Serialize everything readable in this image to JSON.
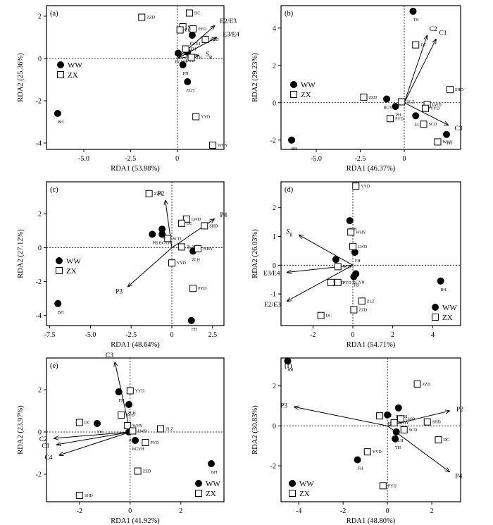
{
  "legend": {
    "ww": "WW",
    "zx": "ZX"
  },
  "chart_data": [
    {
      "type": "scatter",
      "panel": "(a)",
      "xlabel": "RDA1 (53.88%)",
      "ylabel": "RDA2 (25.36%)",
      "xlim": [
        -7,
        2.5
      ],
      "ylim": [
        -4.3,
        2.5
      ],
      "xticks": [
        "-5.0",
        "-2.5",
        "0"
      ],
      "xtickvals": [
        -5,
        -2.5,
        0
      ],
      "yticks": [
        "2",
        "0",
        "-2",
        "-4"
      ],
      "ytickvals": [
        2,
        0,
        -2,
        -4
      ],
      "legend_position": "top-left",
      "ww": [
        {
          "label": "BH",
          "x": -6.4,
          "y": -2.6
        },
        {
          "label": "BGYH",
          "x": 0.05,
          "y": 0.25
        },
        {
          "label": "PH",
          "x": 0.3,
          "y": -0.3
        },
        {
          "label": "LWD",
          "x": 0.55,
          "y": 0.3
        },
        {
          "label": "ZLH",
          "x": 0.55,
          "y": -1.1
        },
        {
          "label": "E3/E4",
          "x": 0.8,
          "y": 1.1
        }
      ],
      "zx": [
        {
          "label": "ZZD",
          "x": -1.9,
          "y": 1.95
        },
        {
          "label": "SCD",
          "x": 0.3,
          "y": 1.5
        },
        {
          "label": "DC",
          "x": 0.65,
          "y": 2.15
        },
        {
          "label": "ZLZ",
          "x": 0.15,
          "y": 1.35
        },
        {
          "label": "PYD",
          "x": 0.85,
          "y": 1.4
        },
        {
          "label": "TH",
          "x": 0.75,
          "y": 0.05
        },
        {
          "label": "SHD",
          "x": 1.5,
          "y": 0.9
        },
        {
          "label": "YYD",
          "x": 1.0,
          "y": -2.75
        },
        {
          "label": "WHY",
          "x": 1.9,
          "y": -4.1
        },
        {
          "label": "FH",
          "x": 0.45,
          "y": 0.45
        }
      ],
      "arrows": [
        {
          "label": "E2/E3",
          "x": 2.0,
          "y": 1.55
        },
        {
          "label": "E3/E4",
          "x": 2.1,
          "y": 1.0
        },
        {
          "label": "SR",
          "x": 1.15,
          "y": 0.15
        }
      ]
    },
    {
      "type": "scatter",
      "panel": "(b)",
      "xlabel": "RDA1 (46.37%)",
      "ylabel": "RDA2 (29.23%)",
      "xlim": [
        -7,
        3.2
      ],
      "ylim": [
        -2.5,
        5.2
      ],
      "xticks": [
        "-5.0",
        "-2.5",
        "0"
      ],
      "xtickvals": [
        -5,
        -2.5,
        0
      ],
      "yticks": [
        "4",
        "2",
        "0",
        "-2"
      ],
      "ytickvals": [
        4,
        2,
        0,
        -2
      ],
      "legend_position": "left",
      "ww": [
        {
          "label": "TH",
          "x": 0.5,
          "y": 4.9
        },
        {
          "label": "BGYH",
          "x": -1.0,
          "y": 0.2
        },
        {
          "label": "PH",
          "x": -0.5,
          "y": -0.2
        },
        {
          "label": "ZLH",
          "x": 0.65,
          "y": -0.7
        },
        {
          "label": "FH",
          "x": 2.4,
          "y": -1.7
        },
        {
          "label": "BH",
          "x": -6.4,
          "y": -2.0
        }
      ],
      "zx": [
        {
          "label": "DC",
          "x": 0.65,
          "y": 3.1
        },
        {
          "label": "ZZD",
          "x": -2.3,
          "y": 0.3
        },
        {
          "label": "ZLZ",
          "x": -0.15,
          "y": 0.05
        },
        {
          "label": "LWD",
          "x": 1.3,
          "y": -0.1
        },
        {
          "label": "YYD",
          "x": 1.2,
          "y": -0.3
        },
        {
          "label": "SHD",
          "x": 2.6,
          "y": 0.7
        },
        {
          "label": "PYD",
          "x": -0.8,
          "y": -0.85
        },
        {
          "label": "SCD",
          "x": 1.1,
          "y": -1.15
        },
        {
          "label": "WHY",
          "x": 1.9,
          "y": -2.1
        }
      ],
      "arrows": [
        {
          "label": "C2",
          "x": 1.3,
          "y": 3.6
        },
        {
          "label": "C1",
          "x": 1.8,
          "y": 3.4
        },
        {
          "label": "C3",
          "x": 2.5,
          "y": -1.2
        }
      ]
    },
    {
      "type": "scatter",
      "panel": "(c)",
      "xlabel": "RDA1 (48.64%)",
      "ylabel": "RDA2 (27.12%)",
      "xlim": [
        -7.7,
        3.2
      ],
      "ylim": [
        -4.6,
        3.9
      ],
      "xticks": [
        "-7.5",
        "-5.0",
        "-2.5",
        "0",
        "2.5"
      ],
      "xtickvals": [
        -7.5,
        -5,
        -2.5,
        0,
        2.5
      ],
      "yticks": [
        "2",
        "0",
        "-2",
        "-4"
      ],
      "ytickvals": [
        2,
        0,
        -2,
        -4
      ],
      "legend_position": "left",
      "ww": [
        {
          "label": "TH",
          "x": -0.6,
          "y": 1.1
        },
        {
          "label": "PH",
          "x": -1.2,
          "y": 0.8
        },
        {
          "label": "BGYH",
          "x": -0.6,
          "y": 0.8
        },
        {
          "label": "ZLH",
          "x": 1.3,
          "y": -0.2
        },
        {
          "label": "BH",
          "x": -7.0,
          "y": -3.3
        },
        {
          "label": "FH",
          "x": 1.2,
          "y": -4.3
        }
      ],
      "zx": [
        {
          "label": "ZZD",
          "x": -1.4,
          "y": 3.2
        },
        {
          "label": "LWD",
          "x": 0.9,
          "y": 1.7
        },
        {
          "label": "DC",
          "x": 0.6,
          "y": 1.45
        },
        {
          "label": "SHD",
          "x": 2.0,
          "y": 1.3
        },
        {
          "label": "SCD",
          "x": -0.25,
          "y": 0.55
        },
        {
          "label": "WHY",
          "x": 1.6,
          "y": -0.05
        },
        {
          "label": "ZLZ",
          "x": 0.6,
          "y": 0.05
        },
        {
          "label": "YYD",
          "x": 0.0,
          "y": -0.9
        },
        {
          "label": "PYD",
          "x": 1.3,
          "y": -2.4
        }
      ],
      "arrows": [
        {
          "label": "P2",
          "x": -0.4,
          "y": 2.8
        },
        {
          "label": "P4",
          "x": 2.6,
          "y": 1.7
        },
        {
          "label": "P3",
          "x": -2.7,
          "y": -2.3
        }
      ]
    },
    {
      "type": "scatter",
      "panel": "(d)",
      "xlabel": "RDA1 (54.71%)",
      "ylabel": "RDA2 (26.03%)",
      "xlim": [
        -3.6,
        5.4
      ],
      "ylim": [
        -2.1,
        2.9
      ],
      "xticks": [
        "-2",
        "0",
        "2",
        "4"
      ],
      "xtickvals": [
        -2,
        0,
        2,
        4
      ],
      "yticks": [
        "2",
        "1",
        "0",
        "-1"
      ],
      "ytickvals": [
        2,
        1,
        0,
        -1
      ],
      "legend_position": "bottom-right",
      "ww": [
        {
          "label": "ZLH",
          "x": -0.15,
          "y": 1.55
        },
        {
          "label": "FH",
          "x": 0.1,
          "y": 0.45
        },
        {
          "label": "TH",
          "x": -0.85,
          "y": 0.2
        },
        {
          "label": "BGYH",
          "x": 0.15,
          "y": -0.3
        },
        {
          "label": "PH",
          "x": 0.05,
          "y": -0.4
        },
        {
          "label": "BH",
          "x": 4.4,
          "y": -0.55
        }
      ],
      "zx": [
        {
          "label": "YYD",
          "x": 0.15,
          "y": 2.75
        },
        {
          "label": "WHY",
          "x": -0.1,
          "y": 1.15
        },
        {
          "label": "LWD",
          "x": 0.0,
          "y": 0.65
        },
        {
          "label": "SCD",
          "x": -0.75,
          "y": -0.05
        },
        {
          "label": "SHD",
          "x": -1.1,
          "y": -0.6
        },
        {
          "label": "PYD",
          "x": -0.75,
          "y": -0.6
        },
        {
          "label": "ZLZ",
          "x": 0.45,
          "y": -1.25
        },
        {
          "label": "ZZD",
          "x": 0.05,
          "y": -1.55
        },
        {
          "label": "DC",
          "x": -1.6,
          "y": -1.75
        }
      ],
      "arrows": [
        {
          "label": "SR",
          "x": -2.7,
          "y": 1.05
        },
        {
          "label": "E3/E4",
          "x": -3.3,
          "y": -0.25
        },
        {
          "label": "E2/E3",
          "x": -3.3,
          "y": -1.25
        }
      ]
    },
    {
      "type": "scatter",
      "panel": "(e)",
      "xlabel": "RDA1 (41.92%)",
      "ylabel": "RDA2 (23.97%)",
      "xlim": [
        -3.3,
        3.7
      ],
      "ylim": [
        -3.3,
        3.5
      ],
      "xticks": [
        "-2",
        "0",
        "2"
      ],
      "xtickvals": [
        -2,
        0,
        2
      ],
      "yticks": [
        "2",
        "0",
        "-2"
      ],
      "ytickvals": [
        2,
        0,
        -2
      ],
      "legend_position": "bottom-right",
      "ww": [
        {
          "label": "FH",
          "x": -0.45,
          "y": 1.9
        },
        {
          "label": "ZLH",
          "x": -0.05,
          "y": 1.3
        },
        {
          "label": "TH",
          "x": -1.3,
          "y": 0.4
        },
        {
          "label": "PH",
          "x": -0.05,
          "y": 0.0
        },
        {
          "label": "BGYH",
          "x": 0.2,
          "y": -0.4
        },
        {
          "label": "BH",
          "x": 3.2,
          "y": -1.5
        }
      ],
      "zx": [
        {
          "label": "YYD",
          "x": 0.0,
          "y": 1.95
        },
        {
          "label": "DC",
          "x": -2.0,
          "y": 0.45
        },
        {
          "label": "SCD",
          "x": -0.35,
          "y": 0.8
        },
        {
          "label": "WHY",
          "x": -0.1,
          "y": 0.3
        },
        {
          "label": "ZLZ",
          "x": 1.2,
          "y": 0.15
        },
        {
          "label": "LWD",
          "x": 0.1,
          "y": 0.05
        },
        {
          "label": "PYD",
          "x": 0.6,
          "y": -0.5
        },
        {
          "label": "ZZD",
          "x": 0.3,
          "y": -1.85
        },
        {
          "label": "SHD",
          "x": -2.0,
          "y": -3.0
        }
      ],
      "arrows": [
        {
          "label": "C3",
          "x": -0.6,
          "y": 3.3
        },
        {
          "label": "C2",
          "x": -3.0,
          "y": -0.3
        },
        {
          "label": "C1",
          "x": -2.9,
          "y": -0.6
        },
        {
          "label": "C4",
          "x": -2.8,
          "y": -1.1
        }
      ]
    },
    {
      "type": "scatter",
      "panel": "(f)",
      "xlabel": "RDA1 (48.80%)",
      "ylabel": "RDA2 (30.83%)",
      "xlim": [
        -4.8,
        3.3
      ],
      "ylim": [
        -3.8,
        3.4
      ],
      "xticks": [
        "-4",
        "-2",
        "0",
        "2"
      ],
      "xtickvals": [
        -4,
        -2,
        0,
        2
      ],
      "yticks": [
        "2",
        "0",
        "-2"
      ],
      "ytickvals": [
        2,
        0,
        -2
      ],
      "legend_position": "bottom-left",
      "ww": [
        {
          "label": "BH",
          "x": -4.5,
          "y": 3.25
        },
        {
          "label": "BGYH",
          "x": 0.5,
          "y": 0.9
        },
        {
          "label": "PH",
          "x": 0.0,
          "y": 0.55
        },
        {
          "label": "ZLH",
          "x": 0.4,
          "y": -0.3
        },
        {
          "label": "TH",
          "x": 0.35,
          "y": -0.65
        },
        {
          "label": "FH",
          "x": -1.35,
          "y": -1.7
        }
      ],
      "zx": [
        {
          "label": "ZZD",
          "x": 1.35,
          "y": 2.1
        },
        {
          "label": "ZLZ",
          "x": -0.35,
          "y": 0.5
        },
        {
          "label": "LWD",
          "x": 0.6,
          "y": 0.35
        },
        {
          "label": "WHY",
          "x": 0.3,
          "y": 0.15
        },
        {
          "label": "SHD",
          "x": 1.8,
          "y": 0.2
        },
        {
          "label": "SCD",
          "x": 0.75,
          "y": -0.2
        },
        {
          "label": "DC",
          "x": 2.3,
          "y": -0.7
        },
        {
          "label": "YYD",
          "x": -0.9,
          "y": -1.3
        },
        {
          "label": "PYD",
          "x": -0.2,
          "y": -3.0
        }
      ],
      "arrows": [
        {
          "label": "P3",
          "x": -4.2,
          "y": 0.95
        },
        {
          "label": "P2",
          "x": 2.8,
          "y": 0.75
        },
        {
          "label": "P4",
          "x": 2.8,
          "y": -2.3
        }
      ]
    }
  ]
}
